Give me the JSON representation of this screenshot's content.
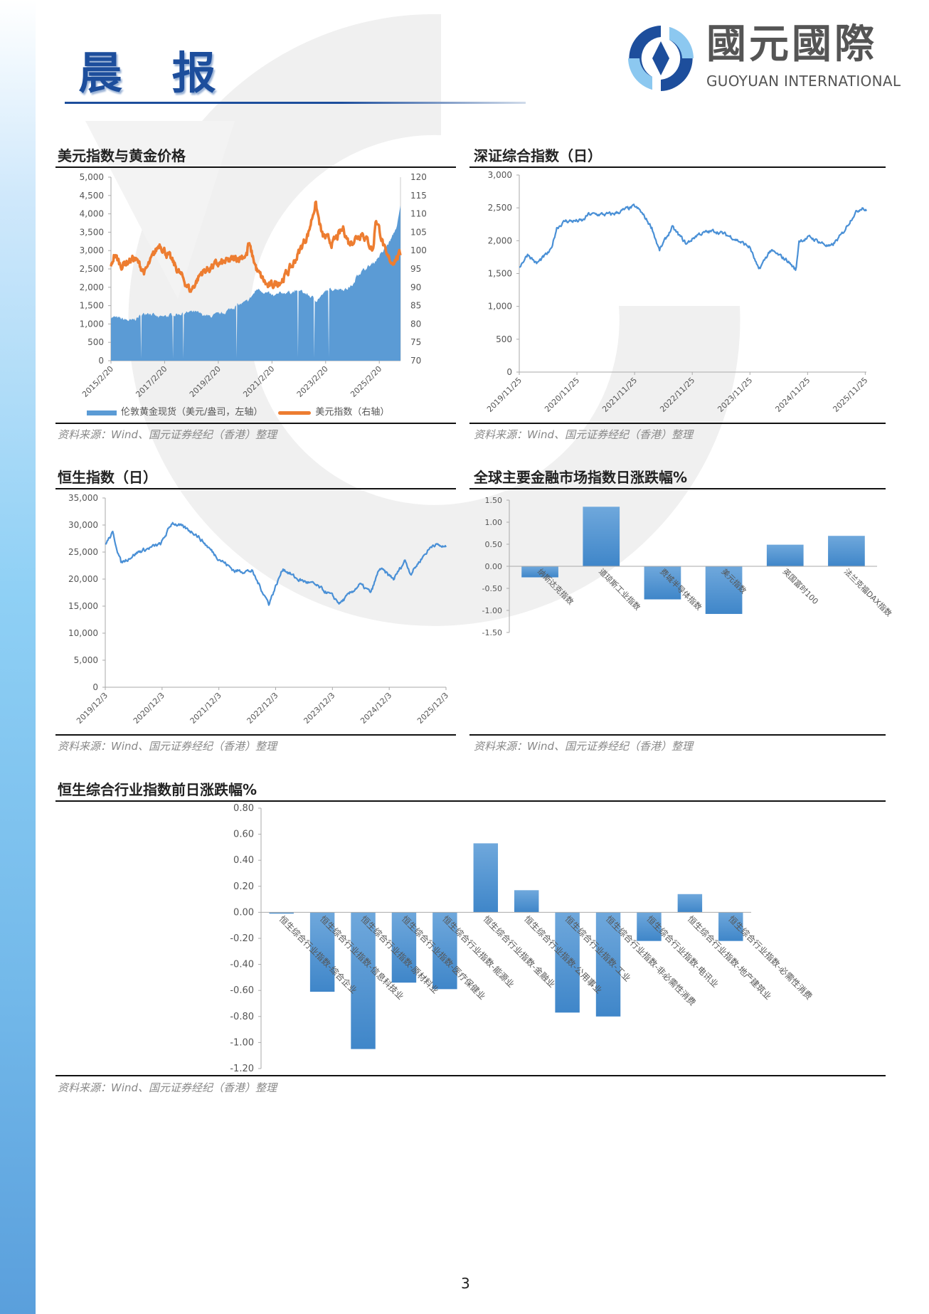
{
  "header": {
    "title": "晨 报",
    "logo_cn": "國元國際",
    "logo_en": "GUOYUAN INTERNATIONAL"
  },
  "colors": {
    "brand": "#1d4e9c",
    "bar": "#4a90d6",
    "gold": "#5b9bd5",
    "usd": "#ed7d31",
    "line": "#4a90d6"
  },
  "source_text": "资料来源：Wind、国元证券经纪（香港）整理",
  "sections": {
    "usd_gold": {
      "title": "美元指数与黄金价格"
    },
    "szse": {
      "title": "深证综合指数（日）"
    },
    "hsi": {
      "title": "恒生指数（日）"
    },
    "global": {
      "title": "全球主要金融市场指数日涨跌幅%"
    },
    "hs_industry": {
      "title": "恒生综合行业指数前日涨跌幅%"
    }
  },
  "page_number": "3",
  "chart_data": [
    {
      "id": "usd_gold",
      "type": "line",
      "y_left": {
        "ticks": [
          "0",
          "500",
          "1,000",
          "1,500",
          "2,000",
          "2,500",
          "3,000",
          "3,500",
          "4,000",
          "4,500",
          "5,000"
        ],
        "range": [
          0,
          5000
        ]
      },
      "y_right": {
        "ticks": [
          "70",
          "75",
          "80",
          "85",
          "90",
          "95",
          "100",
          "105",
          "110",
          "115",
          "120"
        ],
        "range": [
          70,
          120
        ]
      },
      "x_range": [
        2015.13,
        2025.92
      ],
      "x_ticks": [
        {
          "label": "2015/2/20",
          "x": 2015.13
        },
        {
          "label": "2017/2/20",
          "x": 2017.13
        },
        {
          "label": "2019/2/20",
          "x": 2019.13
        },
        {
          "label": "2021/2/20",
          "x": 2021.13
        },
        {
          "label": "2023/2/20",
          "x": 2023.13
        },
        {
          "label": "2025/2/20",
          "x": 2025.13
        }
      ],
      "legend": [
        "伦敦黄金现货（美元/盎司，左轴）",
        "美元指数（右轴）"
      ],
      "series": [
        {
          "name": "伦敦黄金现货（美元/盎司，左轴）",
          "axis": "left",
          "style": "area",
          "points": [
            [
              2015.13,
              1200
            ],
            [
              2015.9,
              1080
            ],
            [
              2016.5,
              1330
            ],
            [
              2016.9,
              1170
            ],
            [
              2017.5,
              1260
            ],
            [
              2018.2,
              1330
            ],
            [
              2018.8,
              1200
            ],
            [
              2019.3,
              1290
            ],
            [
              2019.8,
              1500
            ],
            [
              2020.2,
              1600
            ],
            [
              2020.6,
              1960
            ],
            [
              2021.2,
              1750
            ],
            [
              2021.5,
              1850
            ],
            [
              2022.2,
              1900
            ],
            [
              2022.8,
              1650
            ],
            [
              2023.2,
              1920
            ],
            [
              2023.5,
              1970
            ],
            [
              2023.9,
              1950
            ],
            [
              2024.2,
              2100
            ],
            [
              2024.3,
              2350
            ],
            [
              2024.9,
              2650
            ],
            [
              2025.3,
              3000
            ],
            [
              2025.6,
              3350
            ],
            [
              2025.8,
              3700
            ],
            [
              2025.92,
              4200
            ]
          ]
        },
        {
          "name": "美元指数（右轴）",
          "axis": "right",
          "style": "line",
          "points": [
            [
              2015.13,
              95
            ],
            [
              2015.25,
              99
            ],
            [
              2015.5,
              96
            ],
            [
              2016.0,
              98
            ],
            [
              2016.4,
              94
            ],
            [
              2016.95,
              102
            ],
            [
              2017.5,
              96
            ],
            [
              2018.1,
              89
            ],
            [
              2018.5,
              94
            ],
            [
              2019.0,
              96
            ],
            [
              2019.5,
              97
            ],
            [
              2020.2,
              99
            ],
            [
              2020.25,
              102
            ],
            [
              2020.6,
              94
            ],
            [
              2021.0,
              90
            ],
            [
              2021.5,
              92
            ],
            [
              2021.9,
              96
            ],
            [
              2022.5,
              105
            ],
            [
              2022.75,
              113
            ],
            [
              2023.0,
              104
            ],
            [
              2023.4,
              102
            ],
            [
              2023.8,
              106
            ],
            [
              2024.0,
              102
            ],
            [
              2024.5,
              105
            ],
            [
              2024.9,
              100
            ],
            [
              2025.0,
              109
            ],
            [
              2025.2,
              104
            ],
            [
              2025.4,
              98
            ],
            [
              2025.6,
              97
            ],
            [
              2025.92,
              99
            ]
          ]
        }
      ]
    },
    {
      "id": "szse",
      "type": "line",
      "y_left": {
        "ticks": [
          "0",
          "500",
          "1,000",
          "1,500",
          "2,000",
          "2,500",
          "3,000"
        ],
        "range": [
          0,
          3000
        ]
      },
      "x_range": [
        2019.9,
        2025.92
      ],
      "x_ticks": [
        {
          "label": "2019/11/25",
          "x": 2019.9
        },
        {
          "label": "2020/11/25",
          "x": 2020.9
        },
        {
          "label": "2021/11/25",
          "x": 2021.9
        },
        {
          "label": "2022/11/25",
          "x": 2022.9
        },
        {
          "label": "2023/11/25",
          "x": 2023.9
        },
        {
          "label": "2024/11/25",
          "x": 2024.9
        },
        {
          "label": "2025/11/25",
          "x": 2025.9
        }
      ],
      "series": [
        {
          "name": "深证综合指数",
          "axis": "left",
          "style": "line",
          "points": [
            [
              2019.9,
              1600
            ],
            [
              2020.05,
              1800
            ],
            [
              2020.2,
              1650
            ],
            [
              2020.45,
              1850
            ],
            [
              2020.55,
              2200
            ],
            [
              2020.7,
              2300
            ],
            [
              2021.0,
              2300
            ],
            [
              2021.1,
              2400
            ],
            [
              2021.5,
              2400
            ],
            [
              2021.9,
              2520
            ],
            [
              2022.0,
              2450
            ],
            [
              2022.2,
              2200
            ],
            [
              2022.33,
              1850
            ],
            [
              2022.55,
              2200
            ],
            [
              2022.8,
              1950
            ],
            [
              2023.0,
              2100
            ],
            [
              2023.3,
              2150
            ],
            [
              2023.6,
              2050
            ],
            [
              2023.9,
              1900
            ],
            [
              2024.05,
              1550
            ],
            [
              2024.25,
              1850
            ],
            [
              2024.55,
              1700
            ],
            [
              2024.7,
              1550
            ],
            [
              2024.75,
              2000
            ],
            [
              2024.95,
              2050
            ],
            [
              2025.3,
              1900
            ],
            [
              2025.5,
              2100
            ],
            [
              2025.7,
              2400
            ],
            [
              2025.85,
              2520
            ],
            [
              2025.92,
              2450
            ]
          ]
        }
      ]
    },
    {
      "id": "hsi",
      "type": "line",
      "y_left": {
        "ticks": [
          "0",
          "5,000",
          "10,000",
          "15,000",
          "20,000",
          "25,000",
          "30,000",
          "35,000"
        ],
        "range": [
          0,
          35000
        ]
      },
      "x_range": [
        2019.92,
        2025.92
      ],
      "x_ticks": [
        {
          "label": "2019/12/3",
          "x": 2019.92
        },
        {
          "label": "2020/12/3",
          "x": 2020.92
        },
        {
          "label": "2021/12/3",
          "x": 2021.92
        },
        {
          "label": "2022/12/3",
          "x": 2022.92
        },
        {
          "label": "2023/12/3",
          "x": 2023.92
        },
        {
          "label": "2024/12/3",
          "x": 2024.92
        },
        {
          "label": "2025/12/3",
          "x": 2025.92
        }
      ],
      "series": [
        {
          "name": "恒生指数",
          "axis": "left",
          "style": "line",
          "points": [
            [
              2019.92,
              26500
            ],
            [
              2020.05,
              28500
            ],
            [
              2020.2,
              23000
            ],
            [
              2020.5,
              25000
            ],
            [
              2020.9,
              26500
            ],
            [
              2021.1,
              30500
            ],
            [
              2021.5,
              28500
            ],
            [
              2021.9,
              24000
            ],
            [
              2022.2,
              21500
            ],
            [
              2022.5,
              21500
            ],
            [
              2022.8,
              15500
            ],
            [
              2023.05,
              22000
            ],
            [
              2023.3,
              20000
            ],
            [
              2023.6,
              19000
            ],
            [
              2023.9,
              17000
            ],
            [
              2024.05,
              15500
            ],
            [
              2024.4,
              19000
            ],
            [
              2024.6,
              17500
            ],
            [
              2024.75,
              22000
            ],
            [
              2025.0,
              20000
            ],
            [
              2025.2,
              23500
            ],
            [
              2025.3,
              21000
            ],
            [
              2025.5,
              24000
            ],
            [
              2025.7,
              26500
            ],
            [
              2025.92,
              25800
            ]
          ]
        }
      ]
    },
    {
      "id": "global",
      "type": "bar",
      "y_ticks": [
        "-1.50",
        "-1.00",
        "-0.50",
        "0.00",
        "0.50",
        "1.00",
        "1.50"
      ],
      "ylim": [
        -1.5,
        1.5
      ],
      "categories": [
        "纳斯达克指数",
        "道琼斯工业指数",
        "费城半导体指数",
        "美元指数",
        "英国富时100",
        "法兰克福DAX指数"
      ],
      "values": [
        -0.25,
        1.35,
        -0.75,
        -1.08,
        0.49,
        0.69
      ]
    },
    {
      "id": "hs_industry",
      "type": "bar",
      "y_ticks": [
        "-1.20",
        "-1.00",
        "-0.80",
        "-0.60",
        "-0.40",
        "-0.20",
        "0.00",
        "0.20",
        "0.40",
        "0.60",
        "0.80"
      ],
      "ylim": [
        -1.2,
        0.8
      ],
      "categories": [
        "恒生综合行业指数-综合企业",
        "恒生综合行业指数-信息科技业",
        "恒生综合行业指数-原材料业",
        "恒生综合行业指数-医疗保健业",
        "恒生综合行业指数-能源业",
        "恒生综合行业指数-金融业",
        "恒生综合行业指数-公用事业",
        "恒生综合行业指数-工业",
        "恒生综合行业指数-非必需性消费",
        "恒生综合行业指数-电讯业",
        "恒生综合行业指数-地产建筑业",
        "恒生综合行业指数-必需性消费"
      ],
      "values": [
        -0.01,
        -0.61,
        -1.05,
        -0.54,
        -0.59,
        0.53,
        0.17,
        -0.77,
        -0.8,
        -0.22,
        0.14,
        -0.22
      ]
    }
  ]
}
